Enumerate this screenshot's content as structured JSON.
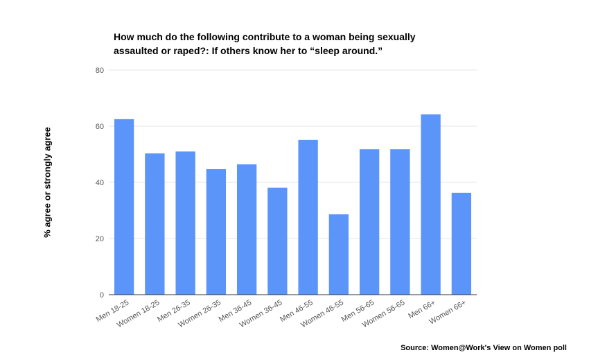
{
  "chart_data": {
    "type": "bar",
    "title_lines": [
      "How much do the following contribute to a woman being sexually",
      "assaulted or raped?: If others know her to “sleep around.”"
    ],
    "ylabel": "% agree or strongly agree",
    "xlabel": "",
    "ylim": [
      0,
      80
    ],
    "yticks": [
      0,
      20,
      40,
      60,
      80
    ],
    "grid": true,
    "bar_color": "#5b95f9",
    "categories": [
      "Men 18-25",
      "Women 18-25",
      "Men 26-35",
      "Women 26-35",
      "Men 36-45",
      "Women 36-45",
      "Men 46-55",
      "Women 46-55",
      "Men 56-65",
      "Women 56-65",
      "Men 66+",
      "Women 66+"
    ],
    "values": [
      62.5,
      50.3,
      51.0,
      44.7,
      46.4,
      38.1,
      55.1,
      28.6,
      51.8,
      51.8,
      64.2,
      36.3
    ]
  },
  "source": "Source: Women@Work's View on Women poll"
}
